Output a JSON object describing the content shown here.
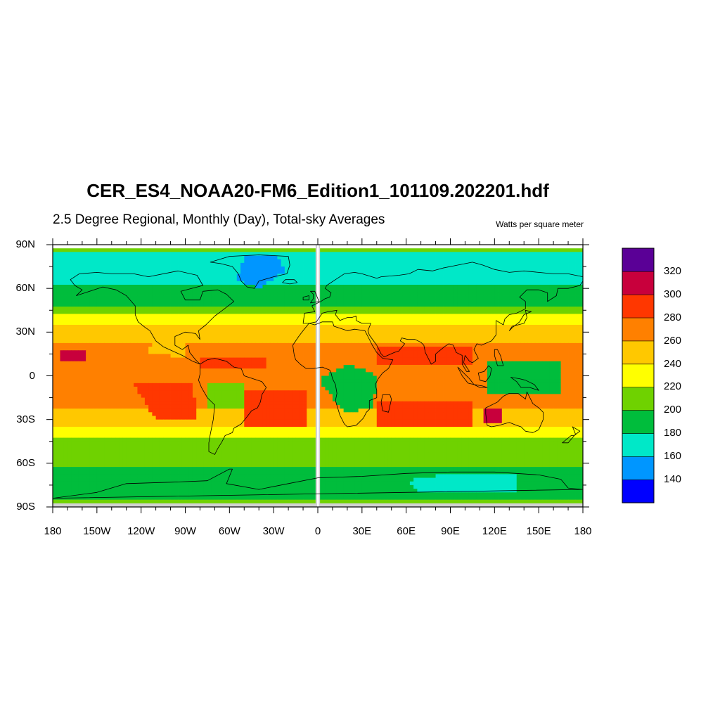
{
  "title": "CER_ES4_NOAA20-FM6_Edition1_101109.202201.hdf",
  "subtitle": "2.5 Degree Regional, Monthly (Day), Total-sky Averages",
  "units": "Watts per square meter",
  "lat_ticks": [
    {
      "value": 90,
      "label": "90N"
    },
    {
      "value": 60,
      "label": "60N"
    },
    {
      "value": 30,
      "label": "30N"
    },
    {
      "value": 0,
      "label": "0"
    },
    {
      "value": -30,
      "label": "30S"
    },
    {
      "value": -60,
      "label": "60S"
    },
    {
      "value": -90,
      "label": "90S"
    }
  ],
  "lon_ticks": [
    {
      "value": -180,
      "label": "180"
    },
    {
      "value": -150,
      "label": "150W"
    },
    {
      "value": -120,
      "label": "120W"
    },
    {
      "value": -90,
      "label": "90W"
    },
    {
      "value": -60,
      "label": "60W"
    },
    {
      "value": -30,
      "label": "30W"
    },
    {
      "value": 0,
      "label": "0"
    },
    {
      "value": 30,
      "label": "30E"
    },
    {
      "value": 60,
      "label": "60E"
    },
    {
      "value": 90,
      "label": "90E"
    },
    {
      "value": 120,
      "label": "120E"
    },
    {
      "value": 150,
      "label": "150E"
    },
    {
      "value": 180,
      "label": "180"
    }
  ],
  "colorbar": {
    "levels": [
      "140",
      "160",
      "180",
      "200",
      "220",
      "240",
      "260",
      "280",
      "300",
      "320"
    ],
    "colors": [
      "#0000ff",
      "#0096ff",
      "#00e8c8",
      "#00bd3c",
      "#6fd200",
      "#ffff00",
      "#ffc800",
      "#ff8000",
      "#ff3700",
      "#c8003c",
      "#5a0096"
    ]
  },
  "map": {
    "lon_range": [
      -180,
      180
    ],
    "lat_range": [
      -90,
      90
    ],
    "projection": "cylindrical equidistant",
    "missing_band_color": "#d2d2d2"
  }
}
